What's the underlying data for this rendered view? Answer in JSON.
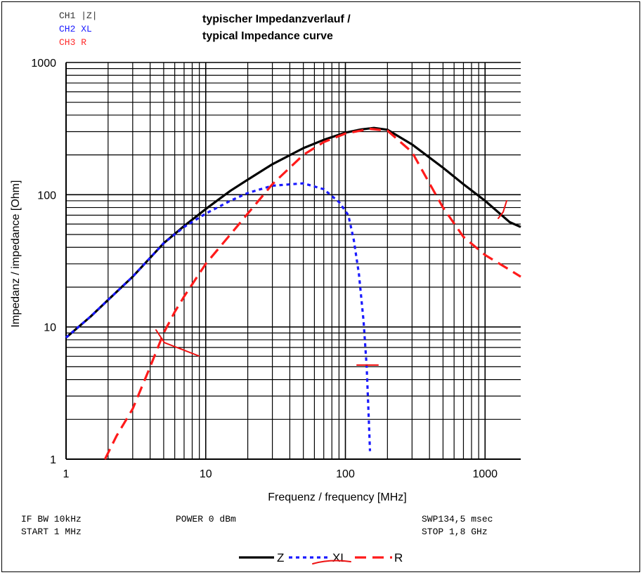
{
  "header": {
    "channels": [
      {
        "text": "CH1 |Z|",
        "color": "#333333"
      },
      {
        "text": "CH2 XL",
        "color": "#1a1aff"
      },
      {
        "text": "CH3 R",
        "color": "#ff2a2a"
      }
    ],
    "title_line1": "typischer Impedanzverlauf /",
    "title_line2": "typical Impedance curve"
  },
  "footer": {
    "if_bw": "IF BW 10kHz",
    "start": "START 1 MHz",
    "power": "POWER 0 dBm",
    "sweep": "SWP134,5 msec",
    "stop": "STOP 1,8 GHz"
  },
  "chart_data": {
    "type": "line",
    "xscale": "log",
    "yscale": "log",
    "xlim": [
      1,
      1800
    ],
    "ylim": [
      1,
      1000
    ],
    "xlabel": "Frequenz / frequency [MHz]",
    "ylabel": "Impedanz / impedance [Ohm]",
    "xticks": [
      1,
      10,
      100,
      1000
    ],
    "yticks": [
      1,
      10,
      100,
      1000
    ],
    "grid": true,
    "legend_position": "bottom-center",
    "series": [
      {
        "name": "Z",
        "color": "#000000",
        "dash": "solid",
        "x": [
          1,
          1.5,
          2,
          3,
          5,
          7,
          10,
          15,
          20,
          30,
          50,
          70,
          100,
          130,
          160,
          200,
          300,
          500,
          700,
          1000,
          1500,
          1800
        ],
        "y": [
          8.3,
          12,
          16,
          24,
          43,
          58,
          78,
          107,
          130,
          170,
          225,
          260,
          295,
          312,
          320,
          310,
          240,
          160,
          120,
          90,
          62,
          57
        ]
      },
      {
        "name": "XL",
        "color": "#1a1aff",
        "dash": "dotted",
        "x": [
          1,
          1.5,
          2,
          3,
          5,
          7,
          10,
          15,
          20,
          30,
          50,
          70,
          90,
          105,
          115,
          125,
          135,
          142,
          147,
          150
        ],
        "y": [
          8.3,
          12,
          16,
          24,
          43,
          57,
          72,
          90,
          103,
          117,
          122,
          110,
          88,
          70,
          45,
          25,
          11,
          5,
          2,
          1.15
        ]
      },
      {
        "name": "R",
        "color": "#ff1a1a",
        "dash": "dashed",
        "x": [
          1.9,
          2.3,
          3,
          4,
          5,
          6,
          7,
          10,
          15,
          20,
          30,
          50,
          70,
          100,
          150,
          200,
          300,
          500,
          700,
          1000,
          1500,
          1800
        ],
        "y": [
          1,
          1.5,
          2.4,
          5,
          9,
          13,
          17,
          30,
          50,
          72,
          120,
          200,
          250,
          290,
          315,
          305,
          210,
          80,
          48,
          35,
          27,
          24
        ]
      }
    ]
  }
}
